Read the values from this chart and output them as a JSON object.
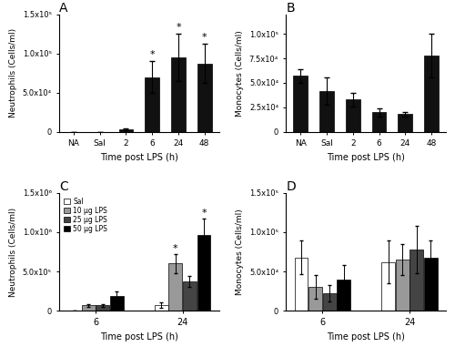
{
  "A": {
    "title": "A",
    "categories": [
      "NA",
      "Sal",
      "2",
      "6",
      "24",
      "48"
    ],
    "values": [
      0,
      0,
      3000,
      70000,
      95000,
      87000
    ],
    "errors": [
      0,
      0,
      1000,
      20000,
      30000,
      25000
    ],
    "ylabel": "Neutrophils (Cells/ml)",
    "xlabel": "Time post LPS (h)",
    "ylim": [
      0,
      150000
    ],
    "yticks": [
      0,
      50000,
      100000,
      150000
    ],
    "ytick_labels": [
      "0",
      "5.0x10⁴",
      "1.0x10⁵",
      "1.5x10⁵"
    ],
    "sig": [
      false,
      false,
      false,
      true,
      true,
      true
    ]
  },
  "B": {
    "title": "B",
    "categories": [
      "NA",
      "Sal",
      "2",
      "6",
      "24",
      "48"
    ],
    "values": [
      57000,
      42000,
      33000,
      20000,
      18000,
      78000
    ],
    "errors": [
      7000,
      14000,
      7000,
      4000,
      2000,
      22000
    ],
    "ylabel": "Monocytes (Cells/ml)",
    "xlabel": "Time post LPS (h)",
    "ylim": [
      0,
      120000
    ],
    "yticks": [
      0,
      25000,
      50000,
      75000,
      100000
    ],
    "ytick_labels": [
      "0",
      "2.5x10⁴",
      "5.0x10⁴",
      "7.5x10⁴",
      "1.0x10⁵"
    ],
    "sig": [
      false,
      false,
      false,
      false,
      false,
      false
    ]
  },
  "C": {
    "title": "C",
    "time_points": [
      "6",
      "24"
    ],
    "groups": [
      "Sal",
      "10 µg LPS",
      "25 µg LPS",
      "50 µg LPS"
    ],
    "colors": [
      "#ffffff",
      "#999999",
      "#444444",
      "#000000"
    ],
    "values": [
      [
        4000,
        70000
      ],
      [
        65000,
        600000
      ],
      [
        65000,
        370000
      ],
      [
        190000,
        970000
      ]
    ],
    "errors": [
      [
        2000,
        30000
      ],
      [
        20000,
        120000
      ],
      [
        20000,
        70000
      ],
      [
        50000,
        200000
      ]
    ],
    "ylabel": "Neutrophils (Cells/ml)",
    "xlabel": "Time post LPS (h)",
    "ylim": [
      0,
      1500000
    ],
    "yticks": [
      0,
      500000,
      1000000,
      1500000
    ],
    "ytick_labels": [
      "0",
      "5.0x10⁵",
      "1.0x10⁶",
      "1.5x10⁶"
    ],
    "sig": [
      [
        false,
        false
      ],
      [
        false,
        true
      ],
      [
        false,
        false
      ],
      [
        false,
        true
      ]
    ]
  },
  "D": {
    "title": "D",
    "time_points": [
      "6",
      "24"
    ],
    "groups": [
      "Sal",
      "10 µg LPS",
      "25 µg LPS",
      "50 µg LPS"
    ],
    "colors": [
      "#ffffff",
      "#999999",
      "#444444",
      "#000000"
    ],
    "values": [
      [
        68000,
        62000
      ],
      [
        30000,
        65000
      ],
      [
        22000,
        78000
      ],
      [
        40000,
        68000
      ]
    ],
    "errors": [
      [
        22000,
        27000
      ],
      [
        15000,
        20000
      ],
      [
        10000,
        30000
      ],
      [
        18000,
        22000
      ]
    ],
    "ylabel": "Monocytes (Cells/ml)",
    "xlabel": "Time post LPS (h)",
    "ylim": [
      0,
      150000
    ],
    "yticks": [
      0,
      50000,
      100000,
      150000
    ],
    "ytick_labels": [
      "0",
      "5.0x10⁴",
      "1.0x10⁵",
      "1.5x10⁵"
    ],
    "sig": [
      [
        false,
        false
      ],
      [
        false,
        false
      ],
      [
        false,
        false
      ],
      [
        false,
        false
      ]
    ]
  },
  "bar_color": "#111111",
  "sig_marker": "*",
  "sig_fontsize": 8
}
